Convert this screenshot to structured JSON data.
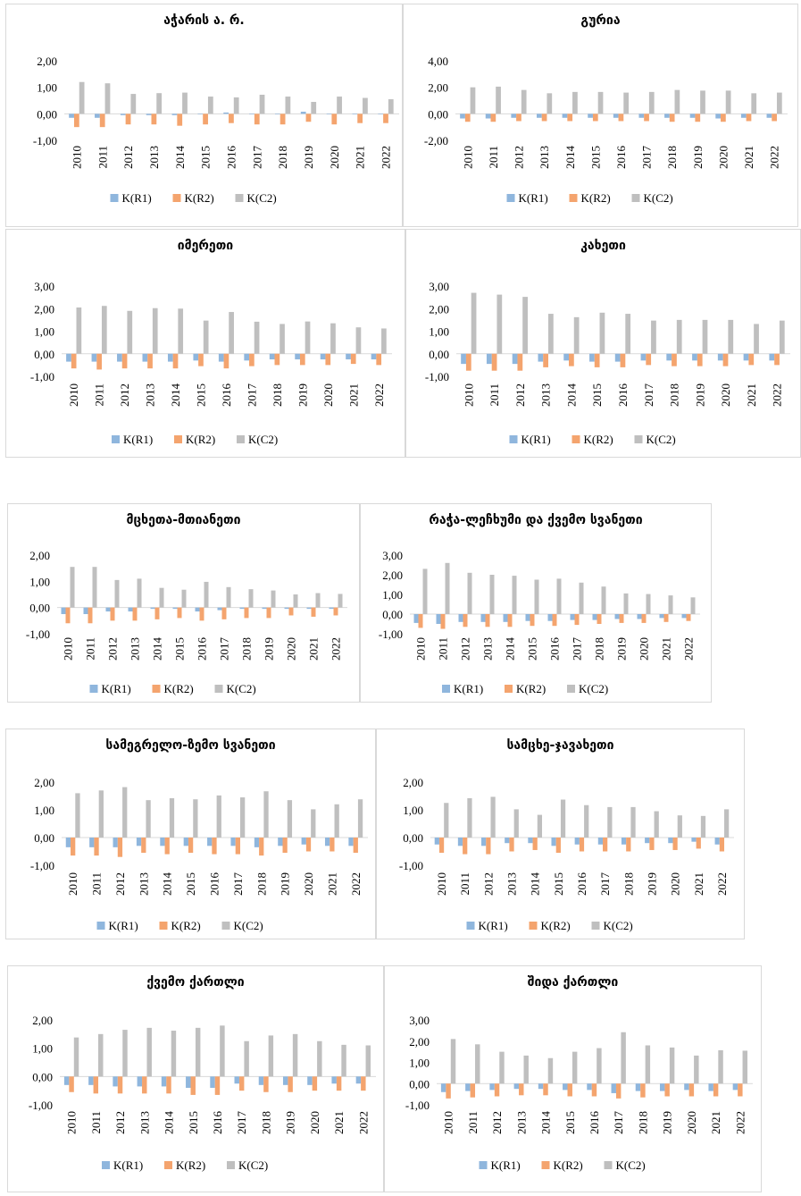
{
  "legend": [
    "K(R1)",
    "K(R2)",
    "K(C2)"
  ],
  "colors": [
    "#8fb6dd",
    "#f4a46e",
    "#bfbfbf"
  ],
  "chart_data": [
    {
      "type": "bar",
      "title": "აჭარის ა. რ.",
      "categories": [
        "2010",
        "2011",
        "2012",
        "2013",
        "2014",
        "2015",
        "2016",
        "2017",
        "2018",
        "2019",
        "2020",
        "2021",
        "2022"
      ],
      "yticks": [
        "-1,00",
        "0,00",
        "1,00",
        "2,00"
      ],
      "ylim": [
        -1,
        2
      ],
      "series": [
        {
          "name": "K(R1)",
          "values": [
            -0.15,
            -0.15,
            -0.05,
            -0.05,
            -0.05,
            -0.02,
            0.05,
            -0.02,
            -0.02,
            0.08,
            -0.02,
            -0.02,
            -0.02
          ]
        },
        {
          "name": "K(R2)",
          "values": [
            -0.5,
            -0.5,
            -0.4,
            -0.4,
            -0.45,
            -0.4,
            -0.35,
            -0.4,
            -0.4,
            -0.3,
            -0.4,
            -0.35,
            -0.35
          ]
        },
        {
          "name": "K(C2)",
          "values": [
            1.2,
            1.15,
            0.75,
            0.78,
            0.8,
            0.65,
            0.62,
            0.72,
            0.65,
            0.45,
            0.65,
            0.6,
            0.55
          ]
        }
      ]
    },
    {
      "type": "bar",
      "title": "გურია",
      "categories": [
        "2010",
        "2011",
        "2012",
        "2013",
        "2014",
        "2015",
        "2016",
        "2017",
        "2018",
        "2019",
        "2020",
        "2021",
        "2022"
      ],
      "yticks": [
        "-2,00",
        "0,00",
        "2,00",
        "4,00"
      ],
      "ylim": [
        -2,
        4
      ],
      "series": [
        {
          "name": "K(R1)",
          "values": [
            -0.35,
            -0.35,
            -0.3,
            -0.3,
            -0.3,
            -0.3,
            -0.3,
            -0.3,
            -0.3,
            -0.3,
            -0.35,
            -0.3,
            -0.3
          ]
        },
        {
          "name": "K(R2)",
          "values": [
            -0.6,
            -0.6,
            -0.55,
            -0.55,
            -0.55,
            -0.55,
            -0.55,
            -0.55,
            -0.6,
            -0.6,
            -0.6,
            -0.55,
            -0.55
          ]
        },
        {
          "name": "K(C2)",
          "values": [
            2.0,
            2.05,
            1.8,
            1.55,
            1.65,
            1.65,
            1.6,
            1.65,
            1.8,
            1.75,
            1.75,
            1.55,
            1.6
          ]
        }
      ]
    },
    {
      "type": "bar",
      "title": "იმერეთი",
      "categories": [
        "2010",
        "2011",
        "2012",
        "2013",
        "2014",
        "2015",
        "2016",
        "2017",
        "2018",
        "2019",
        "2020",
        "2021",
        "2022"
      ],
      "yticks": [
        "-1,00",
        "0,00",
        "1,00",
        "2,00",
        "3,00"
      ],
      "ylim": [
        -1,
        3
      ],
      "series": [
        {
          "name": "K(R1)",
          "values": [
            -0.35,
            -0.35,
            -0.35,
            -0.35,
            -0.35,
            -0.3,
            -0.35,
            -0.3,
            -0.25,
            -0.25,
            -0.25,
            -0.25,
            -0.25
          ]
        },
        {
          "name": "K(R2)",
          "values": [
            -0.65,
            -0.7,
            -0.65,
            -0.65,
            -0.65,
            -0.55,
            -0.65,
            -0.55,
            -0.5,
            -0.5,
            -0.5,
            -0.45,
            -0.5
          ]
        },
        {
          "name": "K(C2)",
          "values": [
            2.05,
            2.12,
            1.9,
            2.02,
            2.0,
            1.47,
            1.85,
            1.42,
            1.32,
            1.43,
            1.35,
            1.17,
            1.12
          ]
        }
      ]
    },
    {
      "type": "bar",
      "title": "კახეთი",
      "categories": [
        "2010",
        "2011",
        "2012",
        "2013",
        "2014",
        "2015",
        "2016",
        "2017",
        "2018",
        "2019",
        "2020",
        "2021",
        "2022"
      ],
      "yticks": [
        "-1,00",
        "0,00",
        "1,00",
        "2,00",
        "3,00"
      ],
      "ylim": [
        -1,
        3
      ],
      "series": [
        {
          "name": "K(R1)",
          "values": [
            -0.45,
            -0.45,
            -0.45,
            -0.35,
            -0.3,
            -0.35,
            -0.35,
            -0.3,
            -0.3,
            -0.3,
            -0.3,
            -0.3,
            -0.3
          ]
        },
        {
          "name": "K(R2)",
          "values": [
            -0.75,
            -0.75,
            -0.75,
            -0.6,
            -0.55,
            -0.6,
            -0.6,
            -0.5,
            -0.55,
            -0.55,
            -0.55,
            -0.5,
            -0.5
          ]
        },
        {
          "name": "K(C2)",
          "values": [
            2.7,
            2.62,
            2.52,
            1.77,
            1.62,
            1.82,
            1.77,
            1.47,
            1.5,
            1.5,
            1.5,
            1.32,
            1.47
          ]
        }
      ]
    },
    {
      "type": "bar",
      "title": "მცხეთა-მთიანეთი",
      "categories": [
        "2010",
        "2011",
        "2012",
        "2013",
        "2014",
        "2015",
        "2016",
        "2017",
        "2018",
        "2019",
        "2020",
        "2021",
        "2022"
      ],
      "yticks": [
        "-1,00",
        "0,00",
        "1,00",
        "2,00"
      ],
      "ylim": [
        -1,
        2
      ],
      "series": [
        {
          "name": "K(R1)",
          "values": [
            -0.25,
            -0.25,
            -0.15,
            -0.15,
            -0.05,
            -0.05,
            -0.15,
            -0.1,
            -0.05,
            -0.05,
            -0.05,
            -0.05,
            -0.05
          ]
        },
        {
          "name": "K(R2)",
          "values": [
            -0.6,
            -0.6,
            -0.5,
            -0.5,
            -0.45,
            -0.4,
            -0.5,
            -0.45,
            -0.4,
            -0.4,
            -0.3,
            -0.35,
            -0.3
          ]
        },
        {
          "name": "K(C2)",
          "values": [
            1.55,
            1.55,
            1.05,
            1.1,
            0.75,
            0.68,
            0.98,
            0.78,
            0.7,
            0.65,
            0.5,
            0.55,
            0.52
          ]
        }
      ]
    },
    {
      "type": "bar",
      "title": "რაჭა-ლეჩხუმი და ქვემო სვანეთი",
      "categories": [
        "2010",
        "2011",
        "2012",
        "2013",
        "2014",
        "2015",
        "2016",
        "2017",
        "2018",
        "2019",
        "2020",
        "2021",
        "2022"
      ],
      "yticks": [
        "-1,00",
        "0,00",
        "1,00",
        "2,00",
        "3,00"
      ],
      "ylim": [
        -1,
        3
      ],
      "series": [
        {
          "name": "K(R1)",
          "values": [
            -0.45,
            -0.5,
            -0.4,
            -0.4,
            -0.4,
            -0.35,
            -0.35,
            -0.3,
            -0.3,
            -0.25,
            -0.25,
            -0.2,
            -0.2
          ]
        },
        {
          "name": "K(R2)",
          "values": [
            -0.7,
            -0.75,
            -0.65,
            -0.65,
            -0.65,
            -0.6,
            -0.6,
            -0.55,
            -0.5,
            -0.45,
            -0.45,
            -0.4,
            -0.35
          ]
        },
        {
          "name": "K(C2)",
          "values": [
            2.3,
            2.6,
            2.1,
            2.0,
            1.95,
            1.75,
            1.8,
            1.6,
            1.4,
            1.05,
            1.02,
            0.95,
            0.85
          ]
        }
      ]
    },
    {
      "type": "bar",
      "title": "სამეგრელო-ზემო სვანეთი",
      "categories": [
        "2010",
        "2011",
        "2012",
        "2013",
        "2014",
        "2015",
        "2016",
        "2017",
        "2018",
        "2019",
        "2020",
        "2021",
        "2022"
      ],
      "yticks": [
        "-1,00",
        "0,00",
        "1,00",
        "2,00"
      ],
      "ylim": [
        -1,
        2
      ],
      "series": [
        {
          "name": "K(R1)",
          "values": [
            -0.35,
            -0.35,
            -0.35,
            -0.3,
            -0.3,
            -0.3,
            -0.3,
            -0.3,
            -0.35,
            -0.3,
            -0.25,
            -0.3,
            -0.3
          ]
        },
        {
          "name": "K(R2)",
          "values": [
            -0.65,
            -0.65,
            -0.7,
            -0.55,
            -0.6,
            -0.55,
            -0.6,
            -0.6,
            -0.65,
            -0.55,
            -0.5,
            -0.5,
            -0.55
          ]
        },
        {
          "name": "K(C2)",
          "values": [
            1.6,
            1.7,
            1.82,
            1.35,
            1.42,
            1.38,
            1.52,
            1.45,
            1.67,
            1.35,
            1.02,
            1.2,
            1.38
          ]
        }
      ]
    },
    {
      "type": "bar",
      "title": "სამცხე-ჯავახეთი",
      "categories": [
        "2010",
        "2011",
        "2012",
        "2013",
        "2014",
        "2015",
        "2016",
        "2017",
        "2018",
        "2019",
        "2020",
        "2021",
        "2022"
      ],
      "yticks": [
        "-1,00",
        "0,00",
        "1,00",
        "2,00"
      ],
      "ylim": [
        -1,
        2
      ],
      "series": [
        {
          "name": "K(R1)",
          "values": [
            -0.25,
            -0.3,
            -0.3,
            -0.2,
            -0.2,
            -0.3,
            -0.25,
            -0.25,
            -0.25,
            -0.2,
            -0.2,
            -0.15,
            -0.25
          ]
        },
        {
          "name": "K(R2)",
          "values": [
            -0.55,
            -0.6,
            -0.6,
            -0.5,
            -0.45,
            -0.55,
            -0.5,
            -0.5,
            -0.5,
            -0.45,
            -0.45,
            -0.4,
            -0.5
          ]
        },
        {
          "name": "K(C2)",
          "values": [
            1.25,
            1.42,
            1.47,
            1.02,
            0.82,
            1.37,
            1.17,
            1.1,
            1.1,
            0.95,
            0.8,
            0.78,
            1.02
          ]
        }
      ]
    },
    {
      "type": "bar",
      "title": "ქვემო ქართლი",
      "categories": [
        "2010",
        "2011",
        "2012",
        "2013",
        "2014",
        "2015",
        "2016",
        "2017",
        "2018",
        "2019",
        "2020",
        "2021",
        "2022"
      ],
      "yticks": [
        "-1,00",
        "0,00",
        "1,00",
        "2,00"
      ],
      "ylim": [
        -1,
        2
      ],
      "series": [
        {
          "name": "K(R1)",
          "values": [
            -0.3,
            -0.3,
            -0.35,
            -0.35,
            -0.35,
            -0.4,
            -0.4,
            -0.25,
            -0.3,
            -0.3,
            -0.3,
            -0.25,
            -0.25
          ]
        },
        {
          "name": "K(R2)",
          "values": [
            -0.55,
            -0.6,
            -0.6,
            -0.6,
            -0.6,
            -0.65,
            -0.65,
            -0.5,
            -0.55,
            -0.55,
            -0.5,
            -0.5,
            -0.5
          ]
        },
        {
          "name": "K(C2)",
          "values": [
            1.38,
            1.5,
            1.65,
            1.72,
            1.62,
            1.72,
            1.8,
            1.25,
            1.45,
            1.5,
            1.25,
            1.12,
            1.1
          ]
        }
      ]
    },
    {
      "type": "bar",
      "title": "შიდა ქართლი",
      "categories": [
        "2010",
        "2011",
        "2012",
        "2013",
        "2014",
        "2015",
        "2016",
        "2017",
        "2018",
        "2019",
        "2020",
        "2021",
        "2022"
      ],
      "yticks": [
        "-1,00",
        "0,00",
        "1,00",
        "2,00",
        "3,00"
      ],
      "ylim": [
        -1,
        3
      ],
      "series": [
        {
          "name": "K(R1)",
          "values": [
            -0.4,
            -0.35,
            -0.3,
            -0.25,
            -0.25,
            -0.3,
            -0.3,
            -0.45,
            -0.35,
            -0.35,
            -0.3,
            -0.35,
            -0.3
          ]
        },
        {
          "name": "K(R2)",
          "values": [
            -0.7,
            -0.65,
            -0.6,
            -0.55,
            -0.55,
            -0.6,
            -0.6,
            -0.7,
            -0.65,
            -0.6,
            -0.6,
            -0.6,
            -0.6
          ]
        },
        {
          "name": "K(C2)",
          "values": [
            2.1,
            1.85,
            1.5,
            1.32,
            1.2,
            1.5,
            1.67,
            2.42,
            1.8,
            1.7,
            1.32,
            1.57,
            1.55
          ]
        }
      ]
    }
  ]
}
